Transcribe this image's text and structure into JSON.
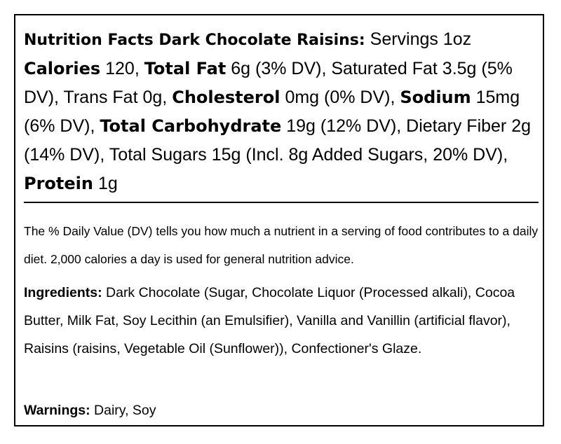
{
  "label": {
    "title": "Nutrition Facts Dark Chocolate Raisins:",
    "servings": "Servings 1oz",
    "calories": {
      "name": "Calories",
      "value": "120,"
    },
    "total_fat": {
      "name": "Total Fat",
      "value": "6g (3% DV), Saturated Fat 3.5g (5% DV), Trans Fat 0g,"
    },
    "cholesterol": {
      "name": "Cholesterol",
      "value": "0mg (0% DV),"
    },
    "sodium": {
      "name": "Sodium",
      "value": "15mg (6% DV),"
    },
    "total_carbohydrate": {
      "name": "Total Carbohydrate",
      "value": "19g (12% DV), Dietary Fiber 2g (14% DV), Total Sugars 15g (Incl. 8g Added Sugars, 20% DV),"
    },
    "protein": {
      "name": "Protein",
      "value": "1g"
    }
  },
  "daily_value_note": "The % Daily Value (DV) tells you how much a nutrient in a serving of food contributes to a daily diet. 2,000 calories a day is used for general nutrition advice.",
  "ingredients": {
    "label": "Ingredients:",
    "text": "Dark Chocolate (Sugar, Chocolate Liquor (Processed alkali), Cocoa Butter, Milk Fat, Soy Lecithin (an Emulsifier), Vanilla and Vanillin (artificial flavor), Raisins (raisins, Vegetable Oil (Sunflower)), Confectioner's Glaze."
  },
  "warnings": {
    "label": "Warnings:",
    "text": "Dairy, Soy"
  }
}
